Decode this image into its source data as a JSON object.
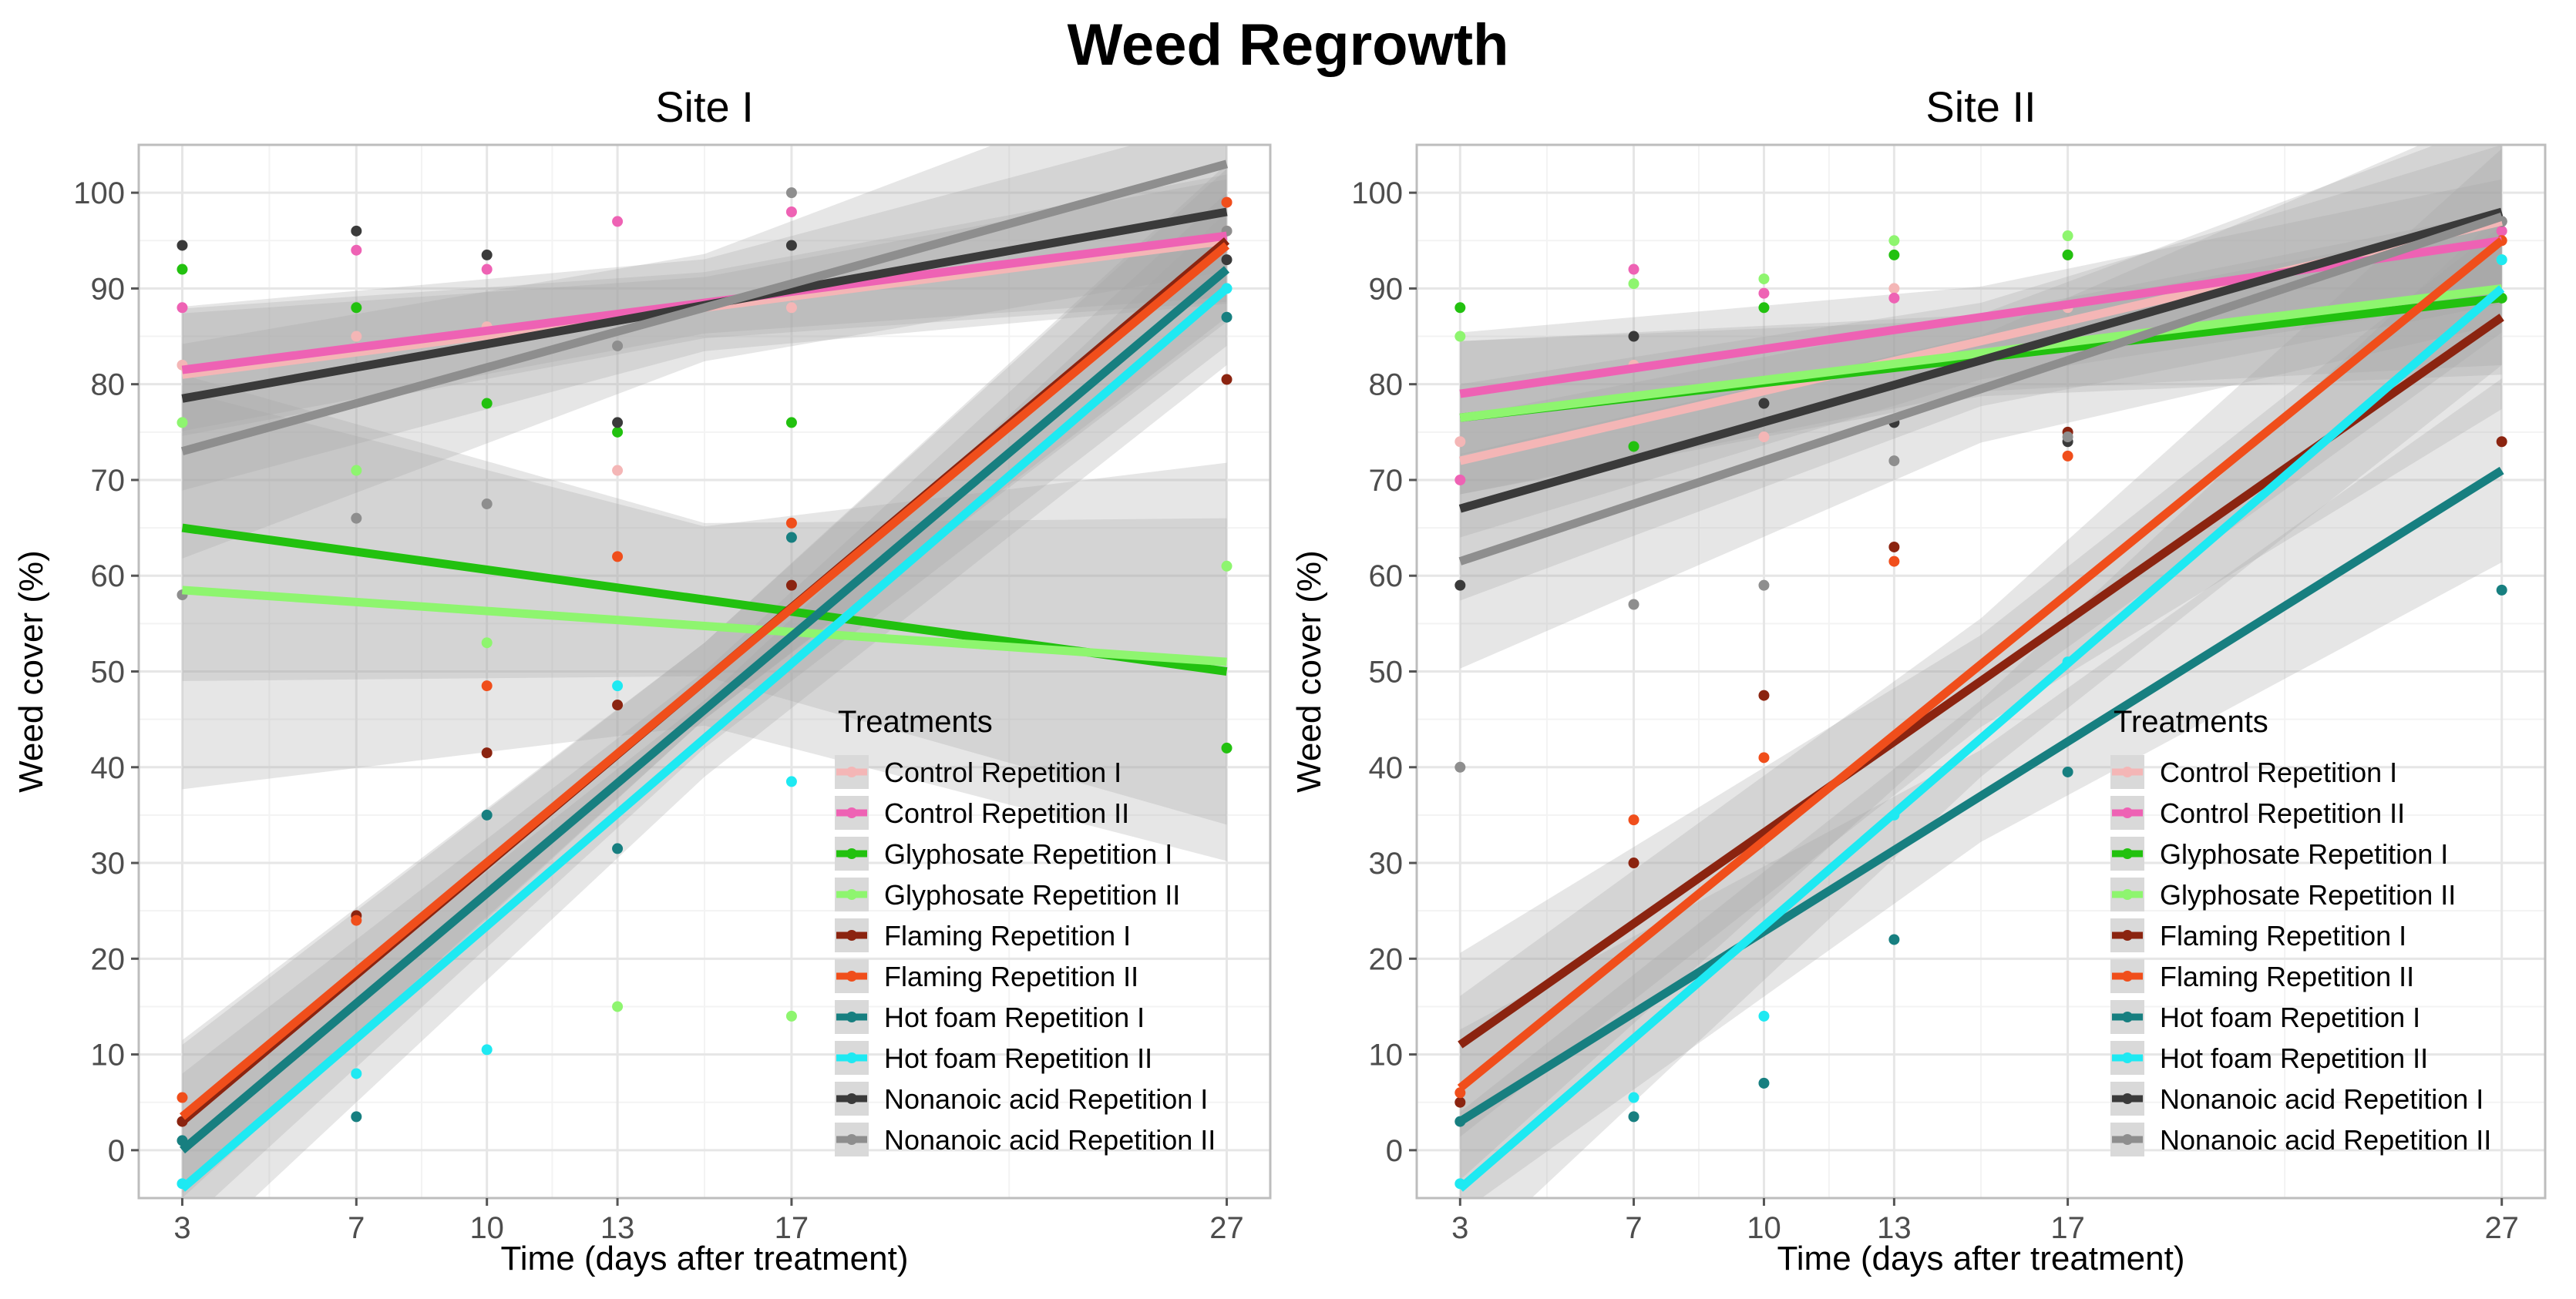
{
  "figure_title": "Weed Regrowth",
  "colors": {
    "panel_bg": "#ffffff",
    "grid_major": "#e6e6e6",
    "grid_minor": "#f3f3f3",
    "ribbon": "#a6a6a6",
    "axis_text": "#4d4d4d"
  },
  "chart_data": [
    {
      "type": "scatter",
      "title": "Site I",
      "xlabel": "Time (days after treatment)",
      "ylabel": "Weed cover (%)",
      "xlim": [
        2,
        28
      ],
      "ylim": [
        -5,
        105
      ],
      "x_ticks": [
        3,
        7,
        10,
        13,
        17,
        27
      ],
      "y_ticks": [
        0,
        10,
        20,
        30,
        40,
        50,
        60,
        70,
        80,
        90,
        100
      ],
      "grid": true,
      "legend_title": "Treatments",
      "legend_position": "bottom-right",
      "series": [
        {
          "name": "Control Repetition I",
          "color": "#f4b6b6",
          "x": [
            3,
            7,
            10,
            13,
            17,
            27
          ],
          "y": [
            82,
            85,
            86,
            71,
            88,
            96
          ],
          "fit": [
            [
              3,
              81
            ],
            [
              27,
              95
            ]
          ],
          "band": 4
        },
        {
          "name": "Control Repetition II",
          "color": "#ee62b4",
          "x": [
            3,
            7,
            10,
            13,
            17,
            27
          ],
          "y": [
            88,
            94,
            92,
            97,
            98,
            99
          ],
          "fit": [
            [
              3,
              81.5
            ],
            [
              27,
              95.5
            ]
          ],
          "band": 4
        },
        {
          "name": "Glyphosate Repetition I",
          "color": "#22c10f",
          "x": [
            3,
            7,
            10,
            13,
            17,
            27
          ],
          "y": [
            92,
            88,
            78,
            75,
            76,
            42
          ],
          "fit": [
            [
              3,
              65
            ],
            [
              27,
              50
            ]
          ],
          "band": 10
        },
        {
          "name": "Glyphosate Repetition II",
          "color": "#8ef56f",
          "x": [
            3,
            7,
            10,
            13,
            17,
            27
          ],
          "y": [
            76,
            71,
            53,
            15,
            14,
            61
          ],
          "fit": [
            [
              3,
              58.5
            ],
            [
              27,
              51
            ]
          ],
          "band": 13
        },
        {
          "name": "Flaming Repetition I",
          "color": "#8b2410",
          "x": [
            3,
            7,
            10,
            13,
            17,
            27
          ],
          "y": [
            3,
            24.5,
            41.5,
            46.5,
            59,
            80.5
          ],
          "fit": [
            [
              3,
              3
            ],
            [
              27,
              95
            ]
          ],
          "band": 5
        },
        {
          "name": "Flaming Repetition II",
          "color": "#f04e1b",
          "x": [
            3,
            7,
            10,
            13,
            17,
            27
          ],
          "y": [
            5.5,
            24,
            48.5,
            62,
            65.5,
            99
          ],
          "fit": [
            [
              3,
              3.5
            ],
            [
              27,
              94.5
            ]
          ],
          "band": 5
        },
        {
          "name": "Hot foam Repetition I",
          "color": "#177f80",
          "x": [
            3,
            7,
            10,
            13,
            17,
            27
          ],
          "y": [
            1,
            3.5,
            35,
            31.5,
            64,
            87
          ],
          "fit": [
            [
              3,
              0
            ],
            [
              27,
              92
            ]
          ],
          "band": 5
        },
        {
          "name": "Hot foam Repetition II",
          "color": "#1ee9f2",
          "x": [
            3,
            7,
            10,
            13,
            17,
            27
          ],
          "y": [
            -3.5,
            8,
            10.5,
            48.5,
            38.5,
            90
          ],
          "fit": [
            [
              3,
              -4
            ],
            [
              27,
              90
            ]
          ],
          "band": 5
        },
        {
          "name": "Nonanoic acid Repetition I",
          "color": "#3a3a3a",
          "x": [
            3,
            7,
            10,
            13,
            17,
            27
          ],
          "y": [
            94.5,
            96,
            93.5,
            76,
            94.5,
            93
          ],
          "fit": [
            [
              3,
              78.5
            ],
            [
              27,
              98
            ]
          ],
          "band": 6
        },
        {
          "name": "Nonanoic acid Repetition II",
          "color": "#8e8e8e",
          "x": [
            3,
            7,
            10,
            13,
            17,
            27
          ],
          "y": [
            58,
            66,
            67.5,
            84,
            100,
            96
          ],
          "fit": [
            [
              3,
              73
            ],
            [
              27,
              103
            ]
          ],
          "band": 7
        }
      ]
    },
    {
      "type": "scatter",
      "title": "Site II",
      "xlabel": "Time (days after treatment)",
      "ylabel": "Weed cover (%)",
      "xlim": [
        2,
        28
      ],
      "ylim": [
        -5,
        105
      ],
      "x_ticks": [
        3,
        7,
        10,
        13,
        17,
        27
      ],
      "y_ticks": [
        0,
        10,
        20,
        30,
        40,
        50,
        60,
        70,
        80,
        90,
        100
      ],
      "grid": true,
      "legend_title": "Treatments",
      "legend_position": "bottom-right",
      "series": [
        {
          "name": "Control Repetition I",
          "color": "#f4b6b6",
          "x": [
            3,
            7,
            10,
            13,
            17,
            27
          ],
          "y": [
            74,
            82,
            74.5,
            90,
            88,
            97
          ],
          "fit": [
            [
              3,
              72
            ],
            [
              27,
              97
            ]
          ],
          "band": 5
        },
        {
          "name": "Control Repetition II",
          "color": "#ee62b4",
          "x": [
            3,
            7,
            10,
            13,
            17,
            27
          ],
          "y": [
            70,
            92,
            89.5,
            89,
            93.5,
            96
          ],
          "fit": [
            [
              3,
              79
            ],
            [
              27,
              95
            ]
          ],
          "band": 4
        },
        {
          "name": "Glyphosate Repetition I",
          "color": "#22c10f",
          "x": [
            3,
            7,
            10,
            13,
            17,
            27
          ],
          "y": [
            88,
            73.5,
            88,
            93.5,
            93.5,
            89
          ],
          "fit": [
            [
              3,
              76.5
            ],
            [
              27,
              89
            ]
          ],
          "band": 5
        },
        {
          "name": "Glyphosate Repetition II",
          "color": "#8ef56f",
          "x": [
            3,
            7,
            10,
            13,
            17,
            27
          ],
          "y": [
            85,
            90.5,
            91,
            95,
            95.5,
            93
          ],
          "fit": [
            [
              3,
              76.5
            ],
            [
              27,
              90
            ]
          ],
          "band": 5
        },
        {
          "name": "Flaming Repetition I",
          "color": "#8b2410",
          "x": [
            3,
            7,
            10,
            13,
            17,
            27
          ],
          "y": [
            5,
            30,
            47.5,
            63,
            75,
            74
          ],
          "fit": [
            [
              3,
              11
            ],
            [
              27,
              87
            ]
          ],
          "band": 6
        },
        {
          "name": "Flaming Repetition II",
          "color": "#f04e1b",
          "x": [
            3,
            7,
            10,
            13,
            17,
            27
          ],
          "y": [
            6,
            34.5,
            41,
            61.5,
            72.5,
            95
          ],
          "fit": [
            [
              3,
              6.5
            ],
            [
              27,
              95
            ]
          ],
          "band": 6
        },
        {
          "name": "Hot foam Repetition I",
          "color": "#177f80",
          "x": [
            3,
            7,
            10,
            13,
            17,
            27
          ],
          "y": [
            3,
            3.5,
            7,
            22,
            39.5,
            58.5
          ],
          "fit": [
            [
              3,
              3
            ],
            [
              27,
              71
            ]
          ],
          "band": 6
        },
        {
          "name": "Hot foam Repetition II",
          "color": "#1ee9f2",
          "x": [
            3,
            7,
            10,
            13,
            17,
            27
          ],
          "y": [
            -3.5,
            5.5,
            14,
            35,
            51,
            93
          ],
          "fit": [
            [
              3,
              -4
            ],
            [
              27,
              90
            ]
          ],
          "band": 5
        },
        {
          "name": "Nonanoic acid Repetition I",
          "color": "#3a3a3a",
          "x": [
            3,
            7,
            10,
            13,
            17,
            27
          ],
          "y": [
            59,
            85,
            78,
            76,
            74,
            97
          ],
          "fit": [
            [
              3,
              67
            ],
            [
              27,
              98
            ]
          ],
          "band": 6
        },
        {
          "name": "Nonanoic acid Repetition II",
          "color": "#8e8e8e",
          "x": [
            3,
            7,
            10,
            13,
            17,
            27
          ],
          "y": [
            40,
            57,
            59,
            72,
            74.5,
            97
          ],
          "fit": [
            [
              3,
              61.5
            ],
            [
              27,
              97.5
            ]
          ],
          "band": 7
        }
      ]
    }
  ]
}
